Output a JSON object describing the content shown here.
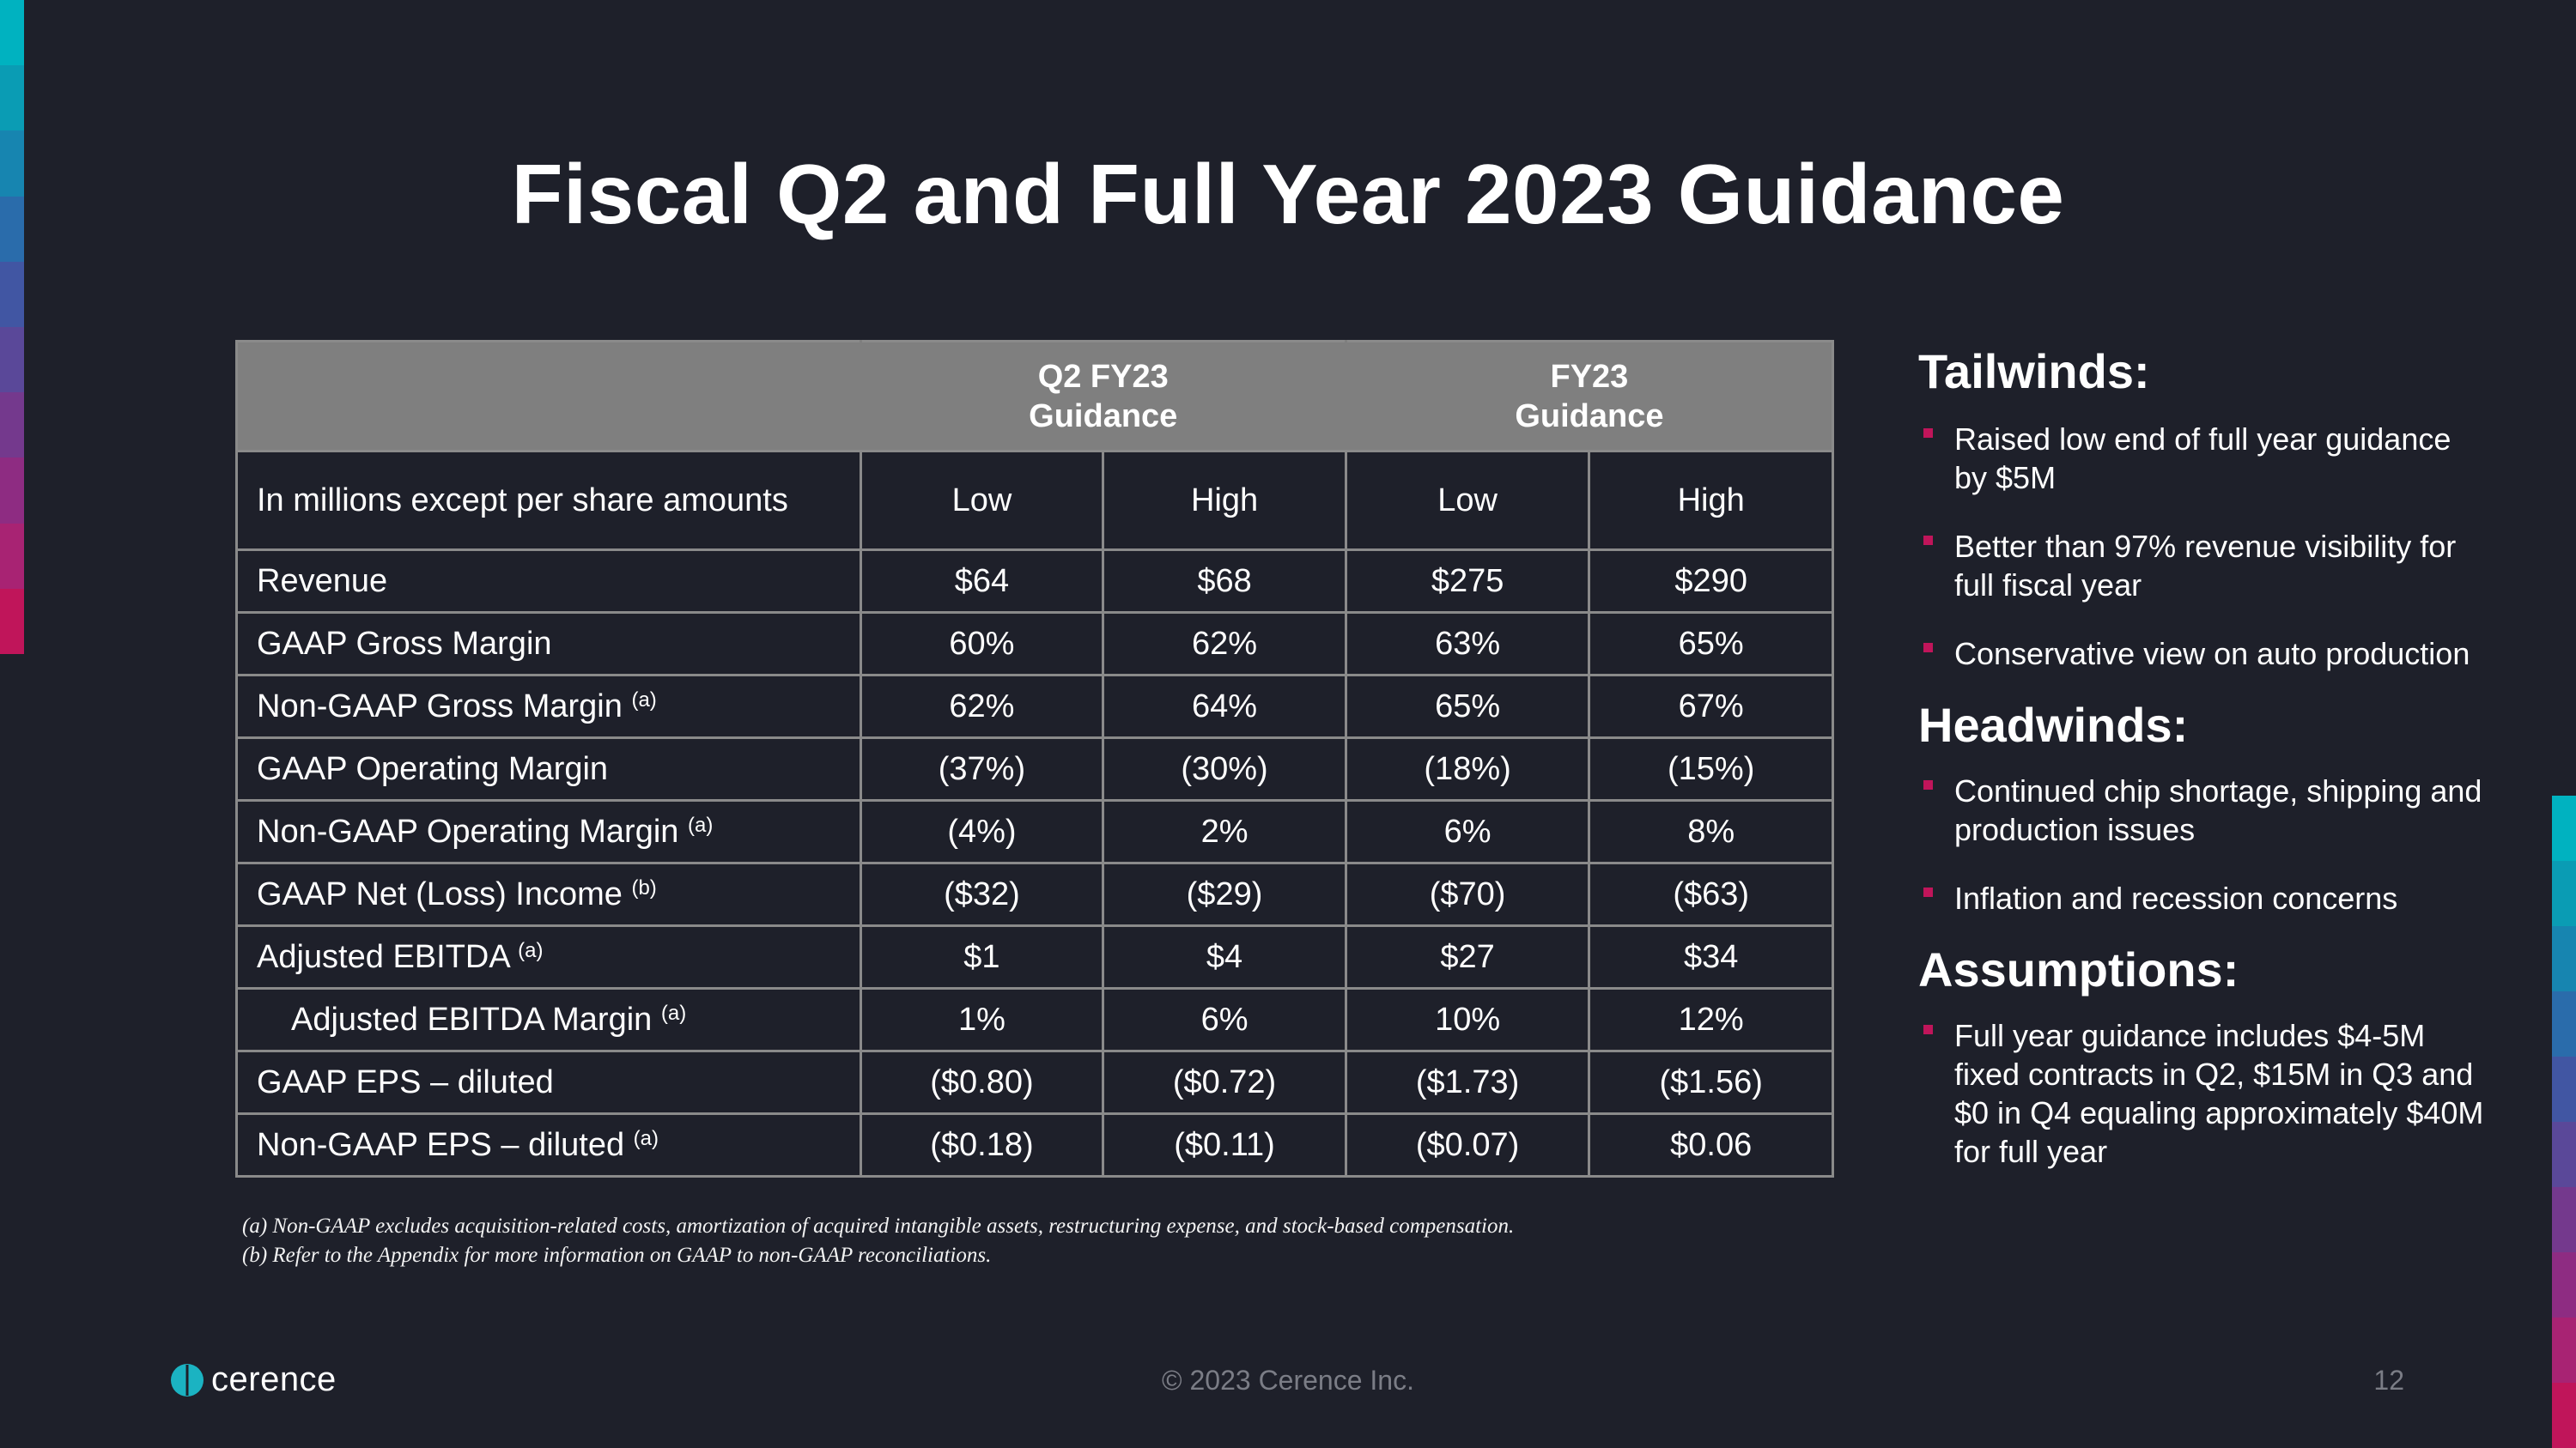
{
  "slide": {
    "title": "Fiscal Q2 and Full Year 2023 Guidance",
    "accent_colors": [
      "#00b2c0",
      "#0a9cb4",
      "#1785b0",
      "#2a6cab",
      "#4156a3",
      "#5a4899",
      "#74398d",
      "#8e2c82",
      "#a82373",
      "#c0155a"
    ]
  },
  "table": {
    "group_headers": [
      {
        "line1": "Q2 FY23",
        "line2": "Guidance"
      },
      {
        "line1": "FY23",
        "line2": "Guidance"
      }
    ],
    "subheader": {
      "label": "In millions except per share amounts",
      "cols": [
        "Low",
        "High",
        "Low",
        "High"
      ]
    },
    "rows": [
      {
        "label": "Revenue",
        "note": "",
        "values": [
          "$64",
          "$68",
          "$275",
          "$290"
        ]
      },
      {
        "label": "GAAP Gross Margin",
        "note": "",
        "values": [
          "60%",
          "62%",
          "63%",
          "65%"
        ]
      },
      {
        "label": "Non-GAAP Gross Margin",
        "note": "(a)",
        "values": [
          "62%",
          "64%",
          "65%",
          "67%"
        ]
      },
      {
        "label": "GAAP Operating Margin",
        "note": "",
        "values": [
          "(37%)",
          "(30%)",
          "(18%)",
          "(15%)"
        ]
      },
      {
        "label": "Non-GAAP Operating Margin",
        "note": "(a)",
        "values": [
          "(4%)",
          "2%",
          "6%",
          "8%"
        ]
      },
      {
        "label": "GAAP Net (Loss) Income",
        "note": "(b)",
        "values": [
          "($32)",
          "($29)",
          "($70)",
          "($63)"
        ]
      },
      {
        "label": "Adjusted EBITDA",
        "note": "(a)",
        "values": [
          "$1",
          "$4",
          "$27",
          "$34"
        ]
      },
      {
        "label": "Adjusted EBITDA Margin",
        "note": "(a)",
        "values": [
          "1%",
          "6%",
          "10%",
          "12%"
        ]
      },
      {
        "label": "GAAP EPS – diluted",
        "note": "",
        "values": [
          "($0.80)",
          "($0.72)",
          "($1.73)",
          "($1.56)"
        ]
      },
      {
        "label": "Non-GAAP EPS – diluted",
        "note": "(a)",
        "values": [
          "($0.18)",
          "($0.11)",
          "($0.07)",
          "$0.06"
        ]
      }
    ]
  },
  "footnotes": {
    "a": "(a) Non-GAAP excludes acquisition-related costs, amortization of acquired intangible assets, restructuring expense, and stock-based compensation.",
    "b": "(b) Refer to the Appendix for more information on GAAP to non-GAAP reconciliations."
  },
  "sidebar": {
    "tailwinds": {
      "heading": "Tailwinds:",
      "items": [
        "Raised low end of full year guidance by $5M",
        "Better than 97% revenue visibility for full fiscal year",
        "Conservative view on auto production"
      ]
    },
    "headwinds": {
      "heading": "Headwinds:",
      "items": [
        "Continued chip shortage, shipping and production issues",
        "Inflation and recession concerns"
      ]
    },
    "assumptions": {
      "heading": "Assumptions:",
      "items": [
        "Full year guidance includes $4-5M fixed contracts in Q2, $15M in Q3 and $0 in Q4 equaling approximately $40M for full year"
      ]
    }
  },
  "footer": {
    "logo_text": "cerence",
    "copyright": "© 2023 Cerence Inc.",
    "page_number": "12",
    "logo_color": "#1bb3c2"
  }
}
